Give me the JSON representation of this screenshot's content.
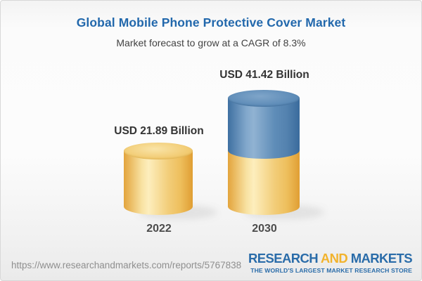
{
  "header": {
    "title": "Global Mobile Phone Protective Cover Market",
    "subtitle": "Market forecast to grow at a CAGR of 8.3%"
  },
  "chart_data": {
    "type": "bar",
    "title": "Global Mobile Phone Protective Cover Market",
    "subtitle": "Market forecast to grow at a CAGR of 8.3%",
    "cagr_percent": 8.3,
    "unit": "USD Billion",
    "categories": [
      "2022",
      "2030"
    ],
    "values": [
      21.89,
      41.42
    ],
    "data_labels": [
      "USD 21.89 Billion",
      "USD 41.42 Billion"
    ],
    "ylim": [
      0,
      45
    ],
    "grid": false,
    "legend": false,
    "style_notes": "3D cylinder bars; 2030 bar stacked: bottom yellow segment equals 2022 value, blue top segment is the growth to 41.42",
    "colors": {
      "base_segment": "#f0c465",
      "growth_segment": "#5585b2",
      "title": "#2268ac"
    }
  },
  "bars": [
    {
      "year": "2022",
      "label": "USD 21.89 Billion",
      "value": 21.89
    },
    {
      "year": "2030",
      "label": "USD 41.42 Billion",
      "value": 41.42
    }
  ],
  "footer": {
    "url": "https://www.researchandmarkets.com/reports/5767838",
    "logo": {
      "word1": "RESEARCH",
      "word2": "AND",
      "word3": "MARKETS",
      "tagline": "THE WORLD'S LARGEST MARKET RESEARCH STORE",
      "blue": "#2a6ca9",
      "gold": "#f2b32d"
    }
  }
}
